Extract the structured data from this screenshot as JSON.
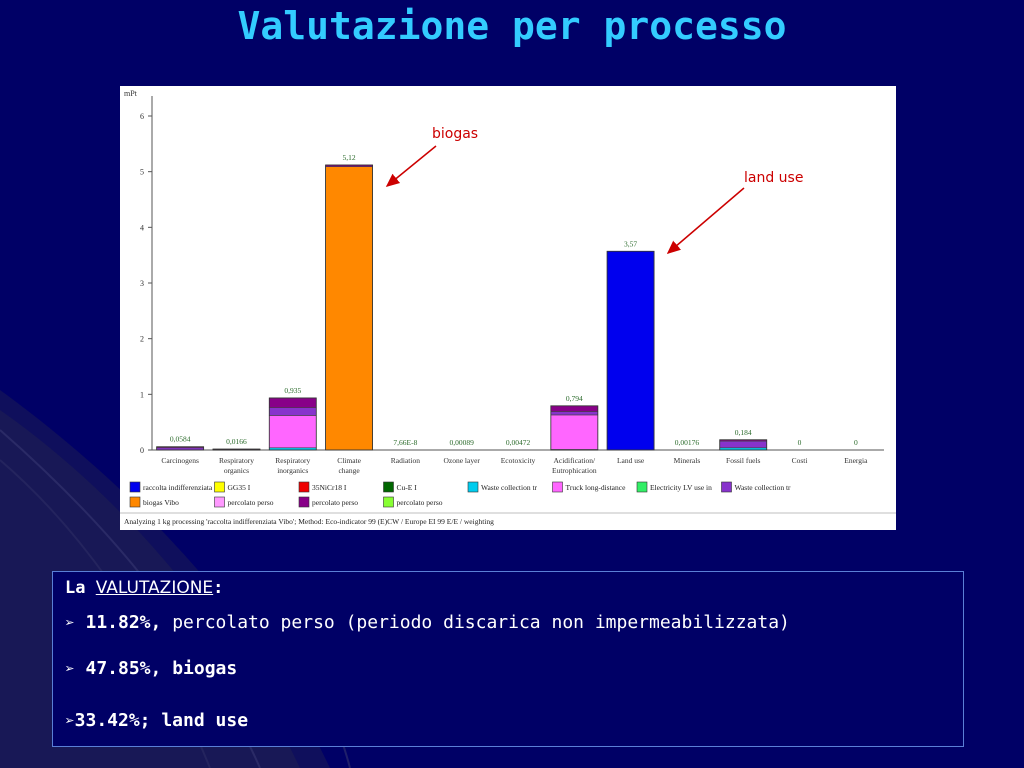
{
  "slide": {
    "title": "Valutazione per processo",
    "text_box": {
      "heading_prefix": "La",
      "heading_term": "VALUTAZIONE",
      "heading_suffix": ":",
      "bullets": [
        {
          "marker": "➢",
          "value": "11.82%,",
          "text": "percolato perso (periodo discarica non impermeabilizzata)"
        },
        {
          "marker": "➢",
          "value": "47.85%,",
          "text": "biogas"
        },
        {
          "marker": "➢",
          "value": "33.42%;",
          "text": "land use"
        }
      ]
    },
    "annotations": {
      "biogas": "biogas",
      "land_use": "land use"
    },
    "colors": {
      "background": "#000066",
      "title": "#33ccff",
      "annotation": "#cc0000"
    }
  },
  "chart_data": {
    "type": "bar",
    "stacked": true,
    "unit_label": "mPt",
    "ylim": [
      0,
      6
    ],
    "yticks": [
      "0",
      "1",
      "2",
      "3",
      "4",
      "5",
      "6"
    ],
    "categories": [
      {
        "label": [
          "Carcinogens"
        ],
        "total_label": "0,0584"
      },
      {
        "label": [
          "Respiratory",
          "organics"
        ],
        "total_label": "0,0166"
      },
      {
        "label": [
          "Respiratory",
          "inorganics"
        ],
        "total_label": "0,935"
      },
      {
        "label": [
          "Climate",
          "change"
        ],
        "total_label": "5,12"
      },
      {
        "label": [
          "Radiation"
        ],
        "total_label": "7,66E-8"
      },
      {
        "label": [
          "Ozone layer"
        ],
        "total_label": "0,00089"
      },
      {
        "label": [
          "Ecotoxicity"
        ],
        "total_label": "0,00472"
      },
      {
        "label": [
          "Acidification/",
          "Eutrophication"
        ],
        "total_label": "0,794"
      },
      {
        "label": [
          "Land use"
        ],
        "total_label": "3,57"
      },
      {
        "label": [
          "Minerals"
        ],
        "total_label": "0,00176"
      },
      {
        "label": [
          "Fossil fuels"
        ],
        "total_label": "0,184"
      },
      {
        "label": [
          "Costi"
        ],
        "total_label": "0"
      },
      {
        "label": [
          "Energia"
        ],
        "total_label": "0"
      }
    ],
    "series": [
      {
        "name": "raccolta indifferenziata",
        "color": "#0000ee",
        "values": [
          0,
          0,
          0,
          0,
          0,
          0,
          0,
          0,
          3.57,
          0,
          0,
          0,
          0
        ]
      },
      {
        "name": "GG35 I",
        "color": "#ffff00",
        "values": [
          0,
          0,
          0,
          0,
          0,
          0,
          0,
          0,
          0,
          0,
          0,
          0,
          0
        ]
      },
      {
        "name": "35NiCr18 I",
        "color": "#ee0000",
        "values": [
          0,
          0,
          0,
          0,
          0,
          0,
          0,
          0,
          0,
          0,
          0,
          0,
          0
        ]
      },
      {
        "name": "Cu-E I",
        "color": "#006600",
        "values": [
          0,
          0,
          0,
          0,
          0,
          0,
          0,
          0,
          0,
          0,
          0,
          0,
          0
        ]
      },
      {
        "name": "Waste collection tr",
        "color": "#00ccee",
        "values": [
          0,
          0,
          0.04,
          0,
          0,
          0,
          0,
          0.01,
          0,
          0,
          0.04,
          0,
          0
        ]
      },
      {
        "name": "Truck long-distance",
        "color": "#ff66ff",
        "values": [
          0,
          0,
          0.58,
          0,
          0,
          0,
          0,
          0.62,
          0,
          0,
          0,
          0,
          0
        ]
      },
      {
        "name": "Electricity LV use in",
        "color": "#33ee66",
        "values": [
          0,
          0,
          0,
          0,
          0,
          0,
          0,
          0,
          0,
          0,
          0,
          0,
          0
        ]
      },
      {
        "name": "Waste collection tr",
        "color": "#8833cc",
        "values": [
          0.04,
          0.01,
          0.14,
          0,
          0,
          0,
          0,
          0.06,
          0,
          0,
          0.12,
          0,
          0
        ]
      },
      {
        "name": "biogas Vibo",
        "color": "#ff8800",
        "values": [
          0,
          0,
          0,
          5.09,
          0,
          0,
          0,
          0,
          0,
          0,
          0,
          0,
          0
        ]
      },
      {
        "name": "percolato perso",
        "color": "#ff99ff",
        "values": [
          0,
          0,
          0,
          0,
          0,
          0,
          0,
          0,
          0,
          0,
          0,
          0,
          0
        ]
      },
      {
        "name": "percolato perso",
        "color": "#880088",
        "values": [
          0.0184,
          0.0066,
          0.175,
          0.03,
          0,
          0,
          0,
          0.104,
          0,
          0,
          0.024,
          0,
          0
        ]
      },
      {
        "name": "percolato perso",
        "color": "#88ff33",
        "values": [
          0,
          0,
          0,
          0,
          0,
          0,
          0,
          0,
          0,
          0,
          0,
          0,
          0
        ]
      }
    ],
    "footer": "Analyzing 1 kg processing 'raccolta indifferenziata Vibo'; Method: Eco-indicator 99 (E)CW / Europe EI 99 E/E / weighting"
  }
}
